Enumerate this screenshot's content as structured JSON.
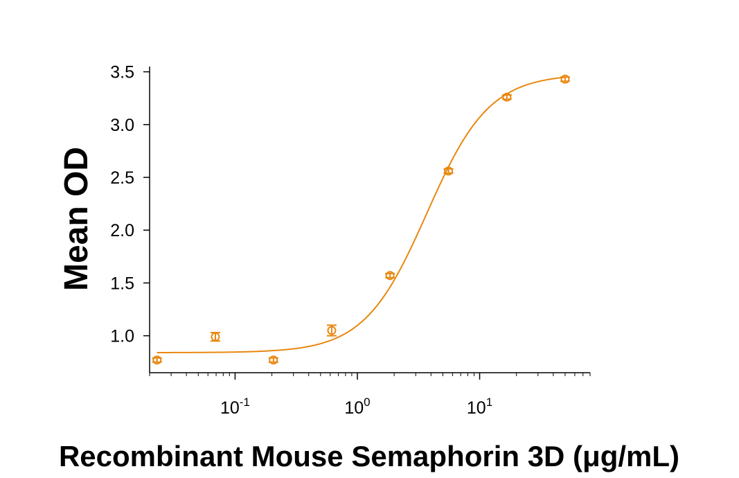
{
  "chart_data": {
    "type": "scatter",
    "title": "",
    "xlabel": "Recombinant Mouse Semaphorin 3D (μg/mL)",
    "ylabel": "Mean OD",
    "x_scale": "log",
    "xlim": [
      0.02,
      80
    ],
    "ylim": [
      0.65,
      3.55
    ],
    "x_ticks": [
      {
        "value": 0.1,
        "base": "10",
        "exp": "-1"
      },
      {
        "value": 1,
        "base": "10",
        "exp": "0"
      },
      {
        "value": 10,
        "base": "10",
        "exp": "1"
      }
    ],
    "y_ticks": [
      "1.0",
      "1.5",
      "2.0",
      "2.5",
      "3.0",
      "3.5"
    ],
    "grid": false,
    "legend": "none",
    "color": "#E8870E",
    "series": [
      {
        "points": [
          {
            "x": 0.023,
            "y": 0.77,
            "err": 0.02
          },
          {
            "x": 0.069,
            "y": 0.99,
            "err": 0.04
          },
          {
            "x": 0.206,
            "y": 0.77,
            "err": 0.02
          },
          {
            "x": 0.617,
            "y": 1.05,
            "err": 0.05
          },
          {
            "x": 1.85,
            "y": 1.57,
            "err": 0.02
          },
          {
            "x": 5.56,
            "y": 2.56,
            "err": 0.02
          },
          {
            "x": 16.7,
            "y": 3.26,
            "err": 0.02
          },
          {
            "x": 50,
            "y": 3.43,
            "err": 0.02
          }
        ],
        "fit": {
          "model": "4PL",
          "bottom": 0.84,
          "top": 3.48,
          "ec50": 3.7,
          "hill": 1.7
        }
      }
    ]
  }
}
